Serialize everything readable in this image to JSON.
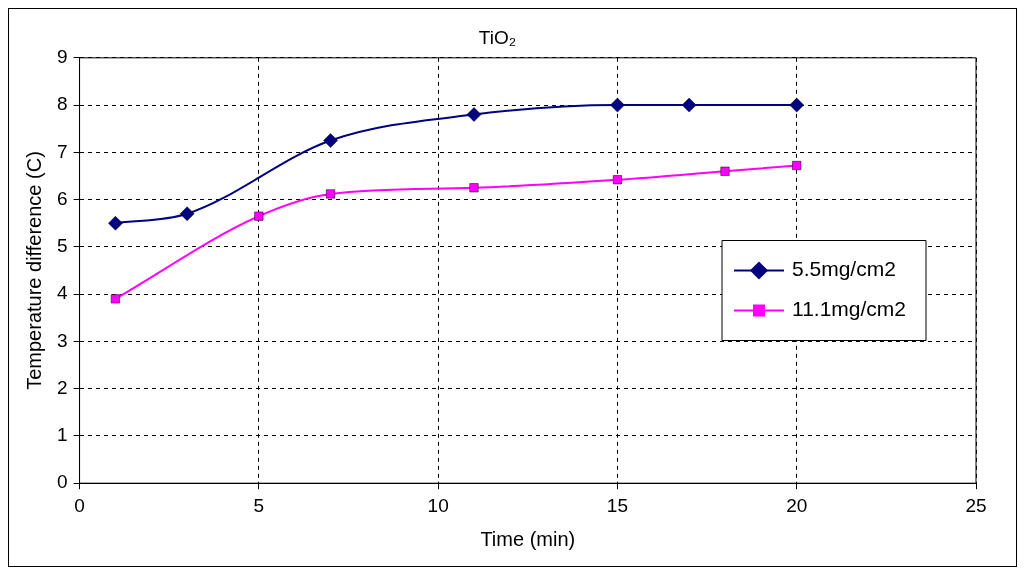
{
  "chart_data": {
    "type": "line",
    "title": "TiO₂",
    "xlabel": "Time (min)",
    "ylabel": "Temperature difference (C)",
    "xlim": [
      0,
      25
    ],
    "xticks": [
      0,
      5,
      10,
      15,
      20,
      25
    ],
    "ylim": [
      0,
      9
    ],
    "yticks": [
      0,
      1,
      2,
      3,
      4,
      5,
      6,
      7,
      8,
      9
    ],
    "grid": true,
    "legend": "right",
    "line_style": "solid",
    "series": [
      {
        "name": "5.5mg/cm2",
        "color": "#000080",
        "marker": "diamond",
        "x": [
          1,
          3,
          7,
          11,
          15,
          17,
          20
        ],
        "values": [
          5.5,
          5.7,
          7.25,
          7.8,
          8,
          8,
          8
        ]
      },
      {
        "name": "11.1mg/cm2",
        "color": "#ff00ff",
        "marker": "square",
        "x": [
          1,
          5,
          7,
          11,
          15,
          18,
          20
        ],
        "values": [
          3.9,
          5.65,
          6.12,
          6.25,
          6.42,
          6.6,
          6.72
        ]
      }
    ]
  }
}
